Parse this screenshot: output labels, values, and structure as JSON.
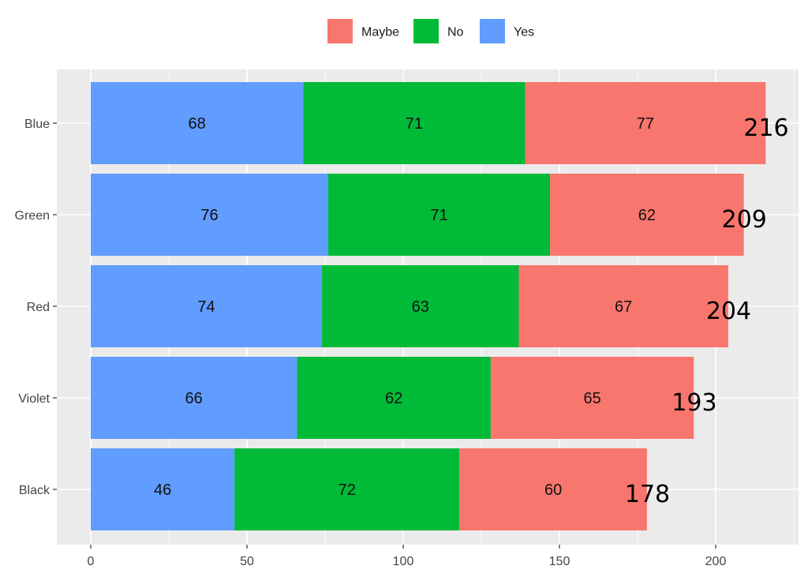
{
  "chart_data": {
    "type": "bar",
    "orientation": "horizontal",
    "stacked": true,
    "categories": [
      "Blue",
      "Green",
      "Red",
      "Violet",
      "Black"
    ],
    "series": [
      {
        "name": "Yes",
        "color": "#619CFF",
        "values": [
          68,
          76,
          74,
          66,
          46
        ]
      },
      {
        "name": "No",
        "color": "#00BA38",
        "values": [
          71,
          71,
          63,
          62,
          72
        ]
      },
      {
        "name": "Maybe",
        "color": "#F8766D",
        "values": [
          77,
          62,
          67,
          65,
          60
        ]
      }
    ],
    "totals": [
      216,
      209,
      204,
      193,
      178
    ],
    "legend_order": [
      "Maybe",
      "No",
      "Yes"
    ],
    "legend_position": "top",
    "xticks": [
      0,
      50,
      100,
      150,
      200
    ],
    "xtick_labels": [
      "0",
      "50",
      "100",
      "150",
      "200"
    ],
    "xlim": [
      0,
      225
    ],
    "grid": true,
    "panel_background": "#EBEBEB",
    "title": "",
    "xlabel": "",
    "ylabel": ""
  }
}
